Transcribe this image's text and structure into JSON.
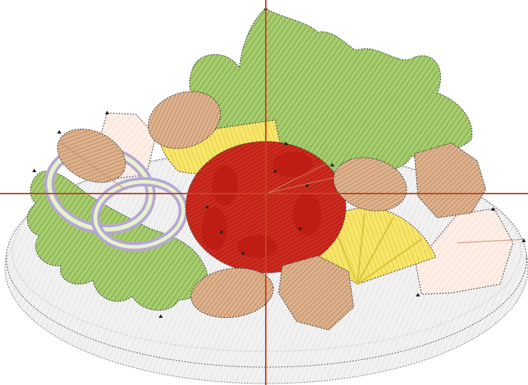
{
  "scene": {
    "subject": "embroidery-design-salad-plate",
    "crosshair": {
      "visible": true,
      "color": "#c9421f"
    },
    "colors": {
      "background": "#ffffff",
      "plate_fill": "#efefef",
      "plate_stroke": "#555555",
      "lettuce_fill": "#9cc464",
      "lettuce_hatch": "#6f9a3a",
      "tomato_fill": "#c8221a",
      "tomato_dark": "#8e1510",
      "lemon_fill": "#f6e35a",
      "lemon_hatch": "#d9c238",
      "mushroom_fill": "#d9ab85",
      "mushroom_hatch": "#a97a55",
      "onion_ring": "#b7a6d4",
      "onion_inner": "#e6f2cc",
      "cheese_fill": "#fbe8de",
      "stitch_marker": "#222222"
    }
  }
}
